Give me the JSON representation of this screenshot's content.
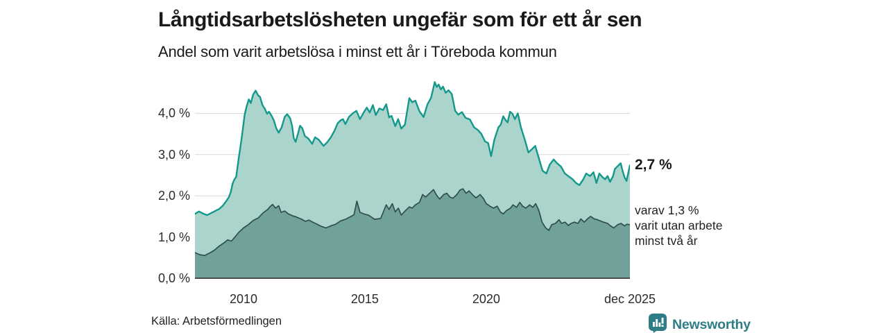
{
  "header": {
    "title": "Långtidsarbetslösheten ungefär som för ett år sen",
    "subtitle": "Andel som varit arbetslösa i minst ett år i Töreboda kommun"
  },
  "annotations": {
    "latest_total": "2,7 %",
    "varav_lines": [
      "varav 1,3 %",
      "varit utan arbete",
      "minst två år"
    ]
  },
  "footer": {
    "source": "Källa: Arbetsförmedlingen",
    "brand": "Newsworthy"
  },
  "colors": {
    "total_fill": "#aad4cc",
    "total_line": "#13988b",
    "two_year_fill": "#70a19a",
    "two_year_line": "#2f4f4b",
    "grid": "#d9d9d9",
    "zero_axis": "#454e4d",
    "text": "#1a1a1a",
    "brand_teal": "#2e7d86"
  },
  "chart_data": {
    "type": "area",
    "title": "Långtidsarbetslösheten ungefär som för ett år sen",
    "subtitle": "Andel som varit arbetslösa i minst ett år i Töreboda kommun",
    "unit": "%",
    "grid": true,
    "legend_position": "right-annotations",
    "x_axis": {
      "min": 2008.0,
      "max": 2025.92,
      "ticks": [
        {
          "label": "2010",
          "year": 2010
        },
        {
          "label": "2015",
          "year": 2015
        },
        {
          "label": "2020",
          "year": 2020
        },
        {
          "label": "dec 2025",
          "year": 2025.92
        }
      ]
    },
    "y_axis": {
      "min": 0,
      "max": 4.9,
      "ticks": [
        {
          "label": "0,0 %",
          "value": 0
        },
        {
          "label": "1,0 %",
          "value": 1
        },
        {
          "label": "2,0 %",
          "value": 2
        },
        {
          "label": "3,0 %",
          "value": 3
        },
        {
          "label": "4,0 %",
          "value": 4
        }
      ]
    },
    "series": [
      {
        "name": "arbetslosa-minst-ett-ar",
        "label": "Andel arbetslösa minst ett år",
        "end_label": "2,7 %",
        "latest_value": 2.7,
        "fill": "#aad4cc",
        "stroke": "#13988b",
        "stroke_width": 2.4,
        "points": [
          [
            2008.0,
            1.56
          ],
          [
            2008.17,
            1.62
          ],
          [
            2008.33,
            1.57
          ],
          [
            2008.5,
            1.53
          ],
          [
            2008.67,
            1.58
          ],
          [
            2008.83,
            1.63
          ],
          [
            2009.0,
            1.68
          ],
          [
            2009.15,
            1.76
          ],
          [
            2009.3,
            1.88
          ],
          [
            2009.4,
            1.97
          ],
          [
            2009.48,
            2.1
          ],
          [
            2009.55,
            2.29
          ],
          [
            2009.63,
            2.4
          ],
          [
            2009.7,
            2.46
          ],
          [
            2009.8,
            2.9
          ],
          [
            2009.9,
            3.3
          ],
          [
            2009.97,
            3.6
          ],
          [
            2010.05,
            3.97
          ],
          [
            2010.13,
            4.17
          ],
          [
            2010.22,
            4.34
          ],
          [
            2010.3,
            4.25
          ],
          [
            2010.4,
            4.46
          ],
          [
            2010.5,
            4.55
          ],
          [
            2010.6,
            4.44
          ],
          [
            2010.68,
            4.4
          ],
          [
            2010.78,
            4.2
          ],
          [
            2010.88,
            4.11
          ],
          [
            2010.97,
            3.99
          ],
          [
            2011.05,
            4.04
          ],
          [
            2011.15,
            3.95
          ],
          [
            2011.25,
            3.83
          ],
          [
            2011.35,
            3.64
          ],
          [
            2011.45,
            3.53
          ],
          [
            2011.57,
            3.66
          ],
          [
            2011.7,
            3.92
          ],
          [
            2011.8,
            3.98
          ],
          [
            2011.92,
            3.88
          ],
          [
            2012.0,
            3.7
          ],
          [
            2012.07,
            3.4
          ],
          [
            2012.15,
            3.31
          ],
          [
            2012.25,
            3.52
          ],
          [
            2012.33,
            3.7
          ],
          [
            2012.42,
            3.64
          ],
          [
            2012.53,
            3.45
          ],
          [
            2012.67,
            3.39
          ],
          [
            2012.83,
            3.26
          ],
          [
            2012.95,
            3.42
          ],
          [
            2013.1,
            3.36
          ],
          [
            2013.3,
            3.21
          ],
          [
            2013.45,
            3.3
          ],
          [
            2013.6,
            3.42
          ],
          [
            2013.75,
            3.58
          ],
          [
            2013.88,
            3.76
          ],
          [
            2014.0,
            3.83
          ],
          [
            2014.1,
            3.86
          ],
          [
            2014.2,
            3.74
          ],
          [
            2014.35,
            3.92
          ],
          [
            2014.5,
            4.0
          ],
          [
            2014.65,
            4.06
          ],
          [
            2014.8,
            3.86
          ],
          [
            2014.95,
            4.02
          ],
          [
            2015.08,
            4.14
          ],
          [
            2015.2,
            4.02
          ],
          [
            2015.33,
            4.2
          ],
          [
            2015.45,
            3.96
          ],
          [
            2015.6,
            4.12
          ],
          [
            2015.75,
            4.08
          ],
          [
            2015.88,
            4.22
          ],
          [
            2016.0,
            3.9
          ],
          [
            2016.1,
            3.94
          ],
          [
            2016.25,
            3.69
          ],
          [
            2016.37,
            3.86
          ],
          [
            2016.5,
            3.63
          ],
          [
            2016.65,
            3.73
          ],
          [
            2016.83,
            4.37
          ],
          [
            2016.95,
            4.27
          ],
          [
            2017.08,
            4.31
          ],
          [
            2017.25,
            4.05
          ],
          [
            2017.42,
            3.91
          ],
          [
            2017.58,
            4.22
          ],
          [
            2017.73,
            4.38
          ],
          [
            2017.88,
            4.76
          ],
          [
            2017.96,
            4.64
          ],
          [
            2018.04,
            4.7
          ],
          [
            2018.13,
            4.58
          ],
          [
            2018.22,
            4.65
          ],
          [
            2018.33,
            4.5
          ],
          [
            2018.45,
            4.56
          ],
          [
            2018.58,
            4.47
          ],
          [
            2018.72,
            4.06
          ],
          [
            2018.85,
            3.97
          ],
          [
            2019.0,
            4.03
          ],
          [
            2019.15,
            3.89
          ],
          [
            2019.33,
            3.85
          ],
          [
            2019.5,
            3.66
          ],
          [
            2019.65,
            3.6
          ],
          [
            2019.8,
            3.5
          ],
          [
            2019.95,
            3.32
          ],
          [
            2020.08,
            3.28
          ],
          [
            2020.2,
            2.96
          ],
          [
            2020.33,
            3.35
          ],
          [
            2020.5,
            3.66
          ],
          [
            2020.6,
            3.73
          ],
          [
            2020.7,
            3.93
          ],
          [
            2020.78,
            3.85
          ],
          [
            2020.88,
            3.78
          ],
          [
            2020.98,
            4.04
          ],
          [
            2021.08,
            3.99
          ],
          [
            2021.18,
            3.86
          ],
          [
            2021.3,
            4.0
          ],
          [
            2021.43,
            3.66
          ],
          [
            2021.58,
            3.38
          ],
          [
            2021.74,
            3.05
          ],
          [
            2021.88,
            3.13
          ],
          [
            2022.02,
            3.21
          ],
          [
            2022.16,
            2.93
          ],
          [
            2022.32,
            2.61
          ],
          [
            2022.48,
            2.54
          ],
          [
            2022.62,
            2.76
          ],
          [
            2022.78,
            2.88
          ],
          [
            2022.92,
            2.79
          ],
          [
            2023.08,
            2.71
          ],
          [
            2023.24,
            2.54
          ],
          [
            2023.4,
            2.47
          ],
          [
            2023.56,
            2.4
          ],
          [
            2023.7,
            2.31
          ],
          [
            2023.84,
            2.26
          ],
          [
            2024.0,
            2.4
          ],
          [
            2024.12,
            2.54
          ],
          [
            2024.28,
            2.48
          ],
          [
            2024.42,
            2.57
          ],
          [
            2024.54,
            2.31
          ],
          [
            2024.66,
            2.54
          ],
          [
            2024.78,
            2.46
          ],
          [
            2024.9,
            2.4
          ],
          [
            2025.0,
            2.48
          ],
          [
            2025.1,
            2.34
          ],
          [
            2025.22,
            2.47
          ],
          [
            2025.3,
            2.65
          ],
          [
            2025.45,
            2.74
          ],
          [
            2025.54,
            2.79
          ],
          [
            2025.62,
            2.6
          ],
          [
            2025.7,
            2.45
          ],
          [
            2025.78,
            2.36
          ],
          [
            2025.92,
            2.74
          ]
        ]
      },
      {
        "name": "utan-arbete-minst-tva-ar",
        "label": "varav utan arbete minst två år",
        "end_label": "varav 1,3 % varit utan arbete minst två år",
        "latest_value": 1.3,
        "fill": "#70a19a",
        "stroke": "#2f4f4b",
        "stroke_width": 1.7,
        "points": [
          [
            2008.0,
            0.62
          ],
          [
            2008.2,
            0.57
          ],
          [
            2008.4,
            0.55
          ],
          [
            2008.6,
            0.61
          ],
          [
            2008.8,
            0.68
          ],
          [
            2009.0,
            0.78
          ],
          [
            2009.2,
            0.86
          ],
          [
            2009.35,
            0.93
          ],
          [
            2009.5,
            0.9
          ],
          [
            2009.65,
            1.0
          ],
          [
            2009.8,
            1.11
          ],
          [
            2010.0,
            1.22
          ],
          [
            2010.2,
            1.3
          ],
          [
            2010.4,
            1.4
          ],
          [
            2010.6,
            1.46
          ],
          [
            2010.8,
            1.58
          ],
          [
            2011.0,
            1.67
          ],
          [
            2011.1,
            1.74
          ],
          [
            2011.2,
            1.79
          ],
          [
            2011.32,
            1.7
          ],
          [
            2011.45,
            1.76
          ],
          [
            2011.55,
            1.6
          ],
          [
            2011.7,
            1.63
          ],
          [
            2011.85,
            1.56
          ],
          [
            2012.0,
            1.52
          ],
          [
            2012.2,
            1.48
          ],
          [
            2012.4,
            1.43
          ],
          [
            2012.55,
            1.38
          ],
          [
            2012.7,
            1.41
          ],
          [
            2012.85,
            1.36
          ],
          [
            2013.0,
            1.32
          ],
          [
            2013.2,
            1.26
          ],
          [
            2013.4,
            1.22
          ],
          [
            2013.6,
            1.27
          ],
          [
            2013.8,
            1.31
          ],
          [
            2014.0,
            1.39
          ],
          [
            2014.2,
            1.43
          ],
          [
            2014.4,
            1.49
          ],
          [
            2014.55,
            1.54
          ],
          [
            2014.67,
            1.87
          ],
          [
            2014.8,
            1.6
          ],
          [
            2014.95,
            1.56
          ],
          [
            2015.15,
            1.53
          ],
          [
            2015.4,
            1.43
          ],
          [
            2015.65,
            1.45
          ],
          [
            2015.88,
            1.78
          ],
          [
            2016.0,
            1.67
          ],
          [
            2016.13,
            1.81
          ],
          [
            2016.25,
            1.61
          ],
          [
            2016.38,
            1.7
          ],
          [
            2016.5,
            1.53
          ],
          [
            2016.67,
            1.64
          ],
          [
            2016.83,
            1.73
          ],
          [
            2016.95,
            1.7
          ],
          [
            2017.08,
            1.78
          ],
          [
            2017.25,
            1.84
          ],
          [
            2017.38,
            2.03
          ],
          [
            2017.5,
            1.97
          ],
          [
            2017.67,
            2.06
          ],
          [
            2017.83,
            2.15
          ],
          [
            2017.96,
            2.01
          ],
          [
            2018.08,
            1.92
          ],
          [
            2018.25,
            2.03
          ],
          [
            2018.38,
            2.06
          ],
          [
            2018.5,
            1.97
          ],
          [
            2018.63,
            1.94
          ],
          [
            2018.79,
            2.03
          ],
          [
            2018.92,
            2.14
          ],
          [
            2019.04,
            2.17
          ],
          [
            2019.17,
            2.06
          ],
          [
            2019.29,
            2.12
          ],
          [
            2019.46,
            2.01
          ],
          [
            2019.58,
            1.95
          ],
          [
            2019.75,
            2.03
          ],
          [
            2019.88,
            1.94
          ],
          [
            2020.0,
            1.81
          ],
          [
            2020.15,
            1.75
          ],
          [
            2020.3,
            1.7
          ],
          [
            2020.45,
            1.75
          ],
          [
            2020.58,
            1.61
          ],
          [
            2020.7,
            1.56
          ],
          [
            2020.83,
            1.64
          ],
          [
            2021.0,
            1.7
          ],
          [
            2021.1,
            1.78
          ],
          [
            2021.25,
            1.72
          ],
          [
            2021.38,
            1.84
          ],
          [
            2021.5,
            1.75
          ],
          [
            2021.63,
            1.7
          ],
          [
            2021.79,
            1.78
          ],
          [
            2021.92,
            1.72
          ],
          [
            2022.04,
            1.81
          ],
          [
            2022.17,
            1.64
          ],
          [
            2022.3,
            1.36
          ],
          [
            2022.45,
            1.22
          ],
          [
            2022.58,
            1.16
          ],
          [
            2022.7,
            1.3
          ],
          [
            2022.85,
            1.33
          ],
          [
            2023.0,
            1.42
          ],
          [
            2023.1,
            1.33
          ],
          [
            2023.25,
            1.36
          ],
          [
            2023.38,
            1.28
          ],
          [
            2023.5,
            1.33
          ],
          [
            2023.63,
            1.36
          ],
          [
            2023.78,
            1.33
          ],
          [
            2023.9,
            1.44
          ],
          [
            2024.04,
            1.36
          ],
          [
            2024.17,
            1.44
          ],
          [
            2024.3,
            1.5
          ],
          [
            2024.45,
            1.44
          ],
          [
            2024.58,
            1.42
          ],
          [
            2024.7,
            1.39
          ],
          [
            2024.83,
            1.36
          ],
          [
            2025.0,
            1.33
          ],
          [
            2025.1,
            1.28
          ],
          [
            2025.25,
            1.22
          ],
          [
            2025.42,
            1.3
          ],
          [
            2025.55,
            1.33
          ],
          [
            2025.7,
            1.27
          ],
          [
            2025.8,
            1.31
          ],
          [
            2025.92,
            1.3
          ]
        ]
      }
    ]
  }
}
